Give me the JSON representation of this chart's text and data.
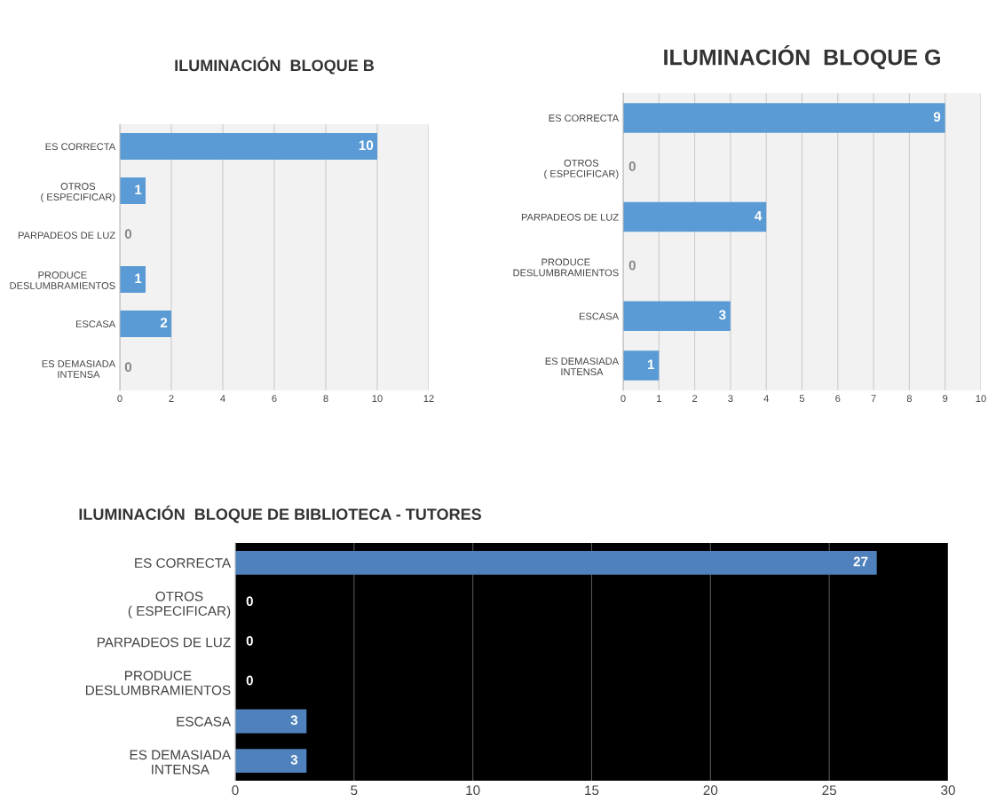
{
  "chart_data": [
    {
      "type": "bar",
      "orientation": "horizontal",
      "title": "ILUMINACIÓN  BLOQUE B",
      "categories": [
        "ES CORRECTA",
        "OTROS\n( ESPECIFICAR)",
        "PARPADEOS DE LUZ",
        "PRODUCE\nDESLUMBRAMIENTOS",
        "ESCASA",
        "ES DEMASIADA\nINTENSA"
      ],
      "values": [
        10,
        1,
        0,
        1,
        2,
        0
      ],
      "color": "#5b9bd5",
      "xlim": [
        0,
        12
      ],
      "xticks": [
        0,
        2,
        4,
        6,
        8,
        10,
        12
      ],
      "grid": "x",
      "data_labels": true
    },
    {
      "type": "bar",
      "orientation": "horizontal",
      "title": "ILUMINACIÓN  BLOQUE G",
      "categories": [
        "ES CORRECTA",
        "OTROS\n( ESPECIFICAR)",
        "PARPADEOS DE LUZ",
        "PRODUCE\nDESLUMBRAMIENTOS",
        "ESCASA",
        "ES DEMASIADA\nINTENSA"
      ],
      "values": [
        9,
        0,
        4,
        0,
        3,
        1
      ],
      "color": "#5b9bd5",
      "xlim": [
        0,
        10
      ],
      "xticks": [
        0,
        1,
        2,
        3,
        4,
        5,
        6,
        7,
        8,
        9,
        10
      ],
      "grid": "x",
      "data_labels": true
    },
    {
      "type": "bar",
      "orientation": "horizontal",
      "title": "ILUMINACIÓN  BLOQUE DE BIBLIOTECA - TUTORES",
      "categories": [
        "ES CORRECTA",
        "OTROS\n( ESPECIFICAR)",
        "PARPADEOS DE LUZ",
        "PRODUCE\nDESLUMBRAMIENTOS",
        "ESCASA",
        "ES DEMASIADA\nINTENSA"
      ],
      "values": [
        27,
        0,
        0,
        0,
        3,
        3
      ],
      "color": "#4f81bd",
      "xlim": [
        0,
        30
      ],
      "xticks": [
        0,
        5,
        10,
        15,
        20,
        25,
        30
      ],
      "grid": "x",
      "data_labels": true
    }
  ]
}
